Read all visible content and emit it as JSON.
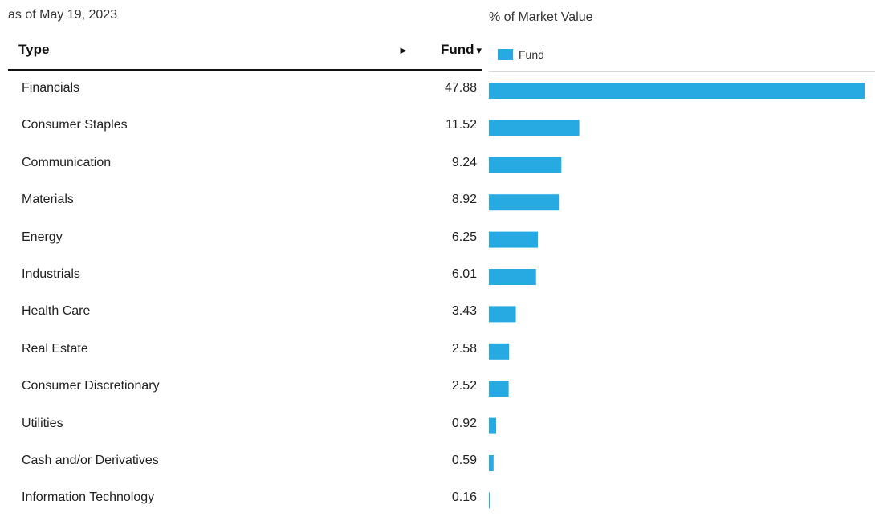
{
  "as_of": "as of May 19, 2023",
  "table": {
    "col_type": "Type",
    "col_fund": "Fund",
    "sort_caret": "▾",
    "expand_arrow": "►"
  },
  "chart_title": "% of Market Value",
  "legend_label": "Fund",
  "colors": {
    "bar": "#26aae1"
  },
  "chart_data": {
    "type": "bar",
    "orientation": "horizontal",
    "title": "% of Market Value",
    "categories": [
      "Financials",
      "Consumer Staples",
      "Communication",
      "Materials",
      "Energy",
      "Industrials",
      "Health Care",
      "Real Estate",
      "Consumer Discretionary",
      "Utilities",
      "Cash and/or Derivatives",
      "Information Technology"
    ],
    "series": [
      {
        "name": "Fund",
        "values": [
          47.88,
          11.52,
          9.24,
          8.92,
          6.25,
          6.01,
          3.43,
          2.58,
          2.52,
          0.92,
          0.59,
          0.16
        ]
      }
    ],
    "value_labels": [
      "47.88",
      "11.52",
      "9.24",
      "8.92",
      "6.25",
      "6.01",
      "3.43",
      "2.58",
      "2.52",
      "0.92",
      "0.59",
      "0.16"
    ],
    "xlim": [
      0,
      47.88
    ],
    "grid": false,
    "legend": "top-left"
  }
}
